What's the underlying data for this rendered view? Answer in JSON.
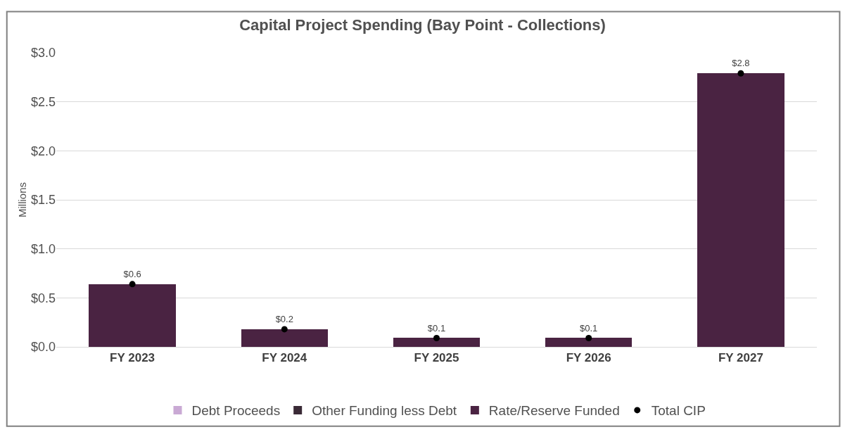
{
  "chart_data": {
    "type": "bar",
    "title": "Capital Project Spending (Bay Point - Collections)",
    "ylabel": "Millions",
    "categories": [
      "FY 2023",
      "FY 2024",
      "FY 2025",
      "FY 2026",
      "FY 2027"
    ],
    "stacked": true,
    "series": [
      {
        "name": "Debt Proceeds",
        "color": "#c9a9d4",
        "values": [
          0,
          0,
          0,
          0,
          0
        ]
      },
      {
        "name": "Other Funding less Debt",
        "color": "#3a2a36",
        "values": [
          0,
          0,
          0,
          0,
          0
        ]
      },
      {
        "name": "Rate/Reserve Funded",
        "color": "#4a2342",
        "values": [
          0.64,
          0.18,
          0.09,
          0.09,
          2.79
        ]
      },
      {
        "name": "Total CIP",
        "type": "scatter",
        "color": "#000000",
        "marker": "circle",
        "x": [
          "FY 2023",
          "FY 2024",
          "FY 2025",
          "FY 2026",
          "FY 2027"
        ],
        "values": [
          0.64,
          0.18,
          0.09,
          0.09,
          2.79
        ],
        "value_labels": [
          "$0.6",
          "$0.2",
          "$0.1",
          "$0.1",
          "$2.8"
        ]
      }
    ],
    "ylim": [
      0,
      3.0
    ],
    "yticks": [
      {
        "value": 0,
        "label": "$0.0"
      },
      {
        "value": 0.5,
        "label": "$0.5"
      },
      {
        "value": 1.0,
        "label": "$1.0"
      },
      {
        "value": 1.5,
        "label": "$1.5"
      },
      {
        "value": 2.0,
        "label": "$2.0"
      },
      {
        "value": 2.5,
        "label": "$2.5"
      },
      {
        "value": 3.0,
        "label": "$3.0"
      }
    ],
    "grid": "y",
    "legend": "bottom"
  }
}
